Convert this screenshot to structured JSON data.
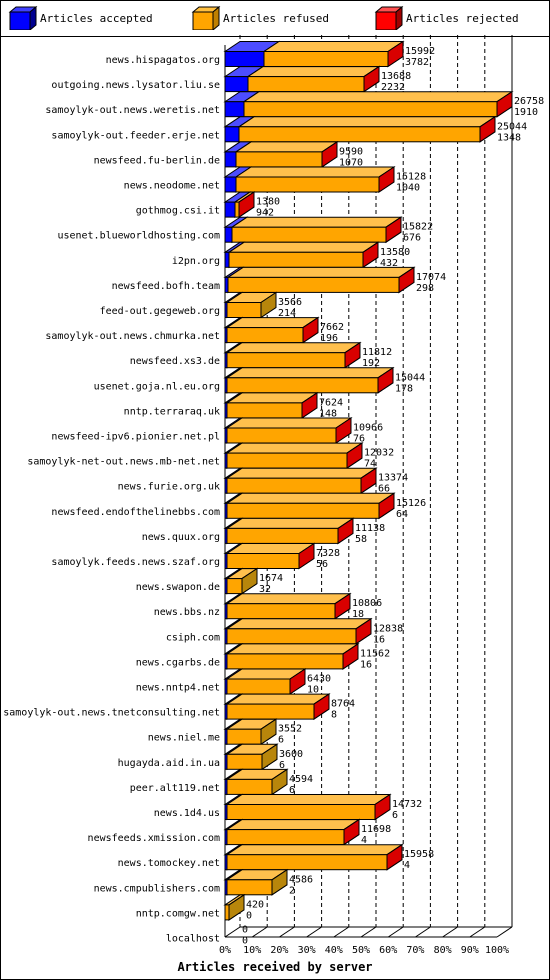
{
  "legend": {
    "accepted": {
      "label": "Articles accepted",
      "color": "#0000ff"
    },
    "refused": {
      "label": "Articles refused",
      "color": "#ffa500"
    },
    "rejected": {
      "label": "Articles rejected",
      "color": "#ff0000"
    }
  },
  "colors": {
    "background": "#ffffff",
    "frame": "#000000",
    "grid": "#000000",
    "legend_separator": "#000000",
    "tail_dark": "#b8860b"
  },
  "chart_data": {
    "type": "bar",
    "orientation": "horizontal",
    "stacked": true,
    "xlabel": "Articles received by server",
    "xlim": [
      0,
      100
    ],
    "xticks": [
      "0%",
      "10%",
      "20%",
      "30%",
      "40%",
      "50%",
      "60%",
      "70%",
      "80%",
      "90%",
      "100%"
    ],
    "grid": true,
    "legend_position": "top",
    "categories": [
      "news.hispagatos.org",
      "outgoing.news.lysator.liu.se",
      "samoylyk-out.news.weretis.net",
      "samoylyk-out.feeder.erje.net",
      "newsfeed.fu-berlin.de",
      "news.neodome.net",
      "gothmog.csi.it",
      "usenet.blueworldhosting.com",
      "i2pn.org",
      "newsfeed.bofh.team",
      "feed-out.gegeweb.org",
      "samoylyk-out.news.chmurka.net",
      "newsfeed.xs3.de",
      "usenet.goja.nl.eu.org",
      "nntp.terraraq.uk",
      "newsfeed-ipv6.pionier.net.pl",
      "samoylyk-net-out.news.mb-net.net",
      "news.furie.org.uk",
      "newsfeed.endofthelinebbs.com",
      "news.quux.org",
      "samoylyk.feeds.news.szaf.org",
      "news.swapon.de",
      "news.bbs.nz",
      "csiph.com",
      "news.cgarbs.de",
      "news.nntp4.net",
      "samoylyk-out.news.tnetconsulting.net",
      "news.niel.me",
      "hugayda.aid.in.ua",
      "peer.alt119.net",
      "news.1d4.us",
      "newsfeeds.xmission.com",
      "news.tomockey.net",
      "news.cmpublishers.com",
      "nntp.comgw.net",
      "localhost"
    ],
    "totals": [
      15992,
      13688,
      26758,
      25044,
      9590,
      15128,
      1380,
      15822,
      13580,
      17074,
      3566,
      7662,
      11812,
      15044,
      7624,
      10966,
      12032,
      13374,
      15126,
      11138,
      7328,
      1674,
      10806,
      12838,
      11562,
      6430,
      8764,
      3552,
      3600,
      4594,
      14732,
      11698,
      15958,
      4586,
      420,
      0
    ],
    "accepted": [
      3782,
      2232,
      1910,
      1348,
      1070,
      1040,
      942,
      676,
      432,
      298,
      214,
      196,
      192,
      178,
      148,
      76,
      74,
      66,
      64,
      58,
      56,
      32,
      18,
      16,
      16,
      10,
      8,
      6,
      6,
      6,
      6,
      4,
      4,
      2,
      0,
      0
    ],
    "series": [
      {
        "name": "Articles accepted",
        "key": "accepted"
      },
      {
        "name": "Articles refused",
        "key": "refused"
      },
      {
        "name": "Articles rejected",
        "key": "rejected"
      }
    ]
  }
}
